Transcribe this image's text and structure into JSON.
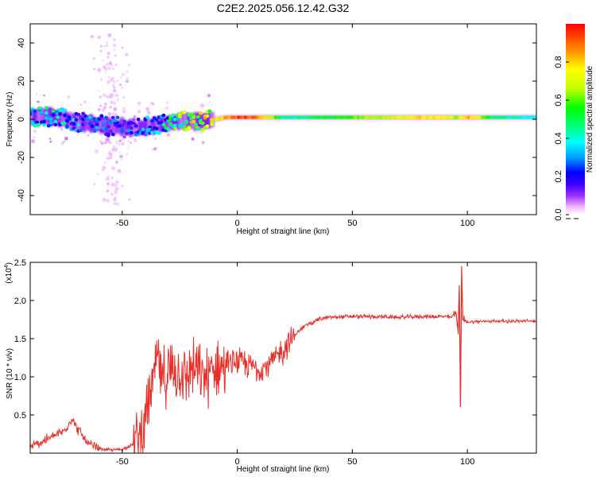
{
  "title": "C2E2.2025.056.12.42.G32",
  "chart_data": [
    {
      "type": "heatmap",
      "title": "C2E2.2025.056.12.42.G32",
      "xlabel": "Height of straight line (km)",
      "ylabel": "Frequency (Hz)",
      "xlim": [
        -90,
        130
      ],
      "ylim": [
        -50,
        50
      ],
      "xticks": [
        -50,
        0,
        50,
        100
      ],
      "xtick_labels": [
        "-50",
        "0",
        "50",
        "100"
      ],
      "yticks": [
        -40,
        -20,
        0,
        20,
        40
      ],
      "ytick_labels": [
        "-40",
        "-20",
        "0",
        "20",
        "40"
      ],
      "colorbar": {
        "label": "Normalized spectral amplitude",
        "range": [
          0.0,
          1.0
        ],
        "ticks": [
          0.0,
          0.2,
          0.4,
          0.6,
          0.8
        ],
        "tick_labels": [
          "0.0",
          "0.2",
          "0.4",
          "0.6",
          "0.8"
        ],
        "colormap": [
          "#ffffff",
          "#f0b8ff",
          "#9b30ff",
          "#3c00ff",
          "#0000ff",
          "#00a0ff",
          "#00ffff",
          "#00ff80",
          "#00ff00",
          "#c0ff00",
          "#ffff00",
          "#ff9000",
          "#ff0000"
        ]
      },
      "ridge": {
        "description_free_points_x": [
          -90,
          -85,
          -80,
          -75,
          -70,
          -65,
          -60,
          -55,
          -50,
          -45,
          -40,
          -35,
          -30,
          -25,
          -20,
          -15,
          -10,
          -5,
          0,
          5,
          10,
          20,
          30,
          40,
          50,
          60,
          70,
          80,
          90,
          95,
          100,
          110,
          120,
          130
        ],
        "frequency_hz": [
          1,
          2,
          1,
          0,
          -2,
          -2,
          -3,
          -4,
          -4,
          -5,
          -4,
          -3,
          -2,
          -1,
          -1,
          -1,
          0,
          1,
          1,
          1,
          1,
          1,
          1,
          1,
          1,
          1,
          1,
          1,
          1,
          1,
          1,
          1,
          1,
          1
        ],
        "amplitude": [
          0.45,
          0.5,
          0.45,
          0.4,
          0.35,
          0.35,
          0.3,
          0.3,
          0.25,
          0.3,
          0.35,
          0.4,
          0.5,
          0.6,
          0.75,
          0.75,
          0.8,
          0.9,
          0.95,
          0.95,
          0.9,
          0.55,
          0.6,
          0.65,
          0.7,
          0.75,
          0.8,
          0.85,
          0.8,
          0.75,
          0.9,
          0.6,
          0.55,
          0.5
        ]
      },
      "scatter_spread_hz": {
        "x_range": [
          -60,
          -50
        ],
        "f_range": [
          -45,
          45
        ]
      }
    },
    {
      "type": "line",
      "xlabel": "Height of straight line (km)",
      "ylabel": "SNR (10 * v/v)",
      "y_scale_label": "(x10",
      "y_scale_exp": "4",
      "xlim": [
        -90,
        130
      ],
      "ylim": [
        0,
        2.5
      ],
      "xticks": [
        -50,
        0,
        50,
        100
      ],
      "xtick_labels": [
        "-50",
        "0",
        "50",
        "100"
      ],
      "yticks": [
        0.5,
        1.0,
        1.5,
        2.0,
        2.5
      ],
      "ytick_labels": [
        "0.5",
        "1.0",
        "1.5",
        "2.0",
        "2.5"
      ],
      "line_color": "#e8302a",
      "series": [
        {
          "x": [
            -90,
            -85,
            -80,
            -75,
            -72,
            -70,
            -65,
            -60,
            -55,
            -50,
            -45,
            -42,
            -40,
            -38,
            -36,
            -35,
            -33,
            -30,
            -28,
            -25,
            -22,
            -20,
            -18,
            -15,
            -12,
            -10,
            -5,
            0,
            5,
            10,
            15,
            20,
            25,
            30,
            35,
            40,
            50,
            60,
            70,
            80,
            90,
            93,
            95,
            96,
            96.5,
            97,
            97.5,
            98,
            100,
            110,
            120,
            130
          ],
          "y": [
            0.08,
            0.15,
            0.22,
            0.3,
            0.45,
            0.35,
            0.12,
            0.06,
            0.04,
            0.05,
            0.12,
            0.25,
            0.45,
            0.75,
            1.0,
            1.3,
            0.95,
            1.05,
            1.1,
            1.05,
            1.0,
            1.15,
            1.05,
            1.0,
            1.05,
            1.1,
            1.15,
            1.2,
            1.15,
            1.1,
            1.2,
            1.35,
            1.55,
            1.68,
            1.75,
            1.78,
            1.79,
            1.79,
            1.78,
            1.79,
            1.79,
            1.78,
            1.85,
            1.6,
            2.2,
            0.6,
            2.45,
            1.75,
            1.72,
            1.73,
            1.73,
            1.73
          ]
        }
      ]
    }
  ]
}
